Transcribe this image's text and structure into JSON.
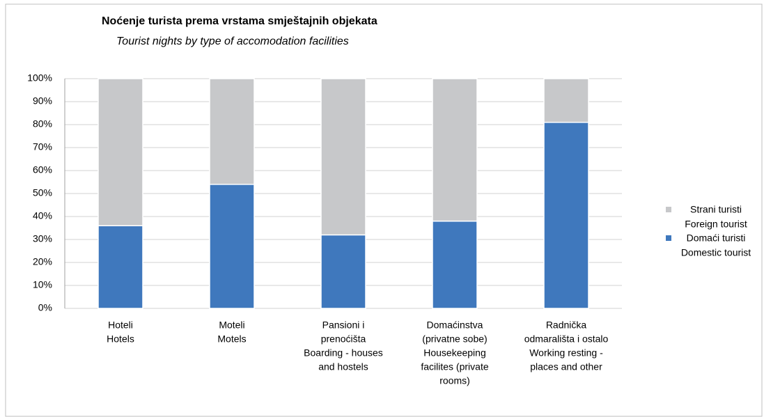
{
  "chart_data": {
    "type": "stacked_bar",
    "title": "Noćenje turista prema vrstama smještajnih objekata",
    "subtitle": "Tourist nights by type of accomodation facilities",
    "categories": [
      [
        "Hoteli",
        "Hotels"
      ],
      [
        "Moteli",
        "Motels"
      ],
      [
        "Pansioni  i",
        "prenoćišta",
        "Boarding - houses",
        "and hostels"
      ],
      [
        "Domaćinstva",
        "(privatne sobe)",
        "Housekeeping",
        "facilites (private",
        "rooms)"
      ],
      [
        "Radnička",
        "odmarališta i ostalo",
        "Working resting -",
        "places and other"
      ]
    ],
    "series": [
      {
        "name": [
          "Domaći turisti",
          "Domestic tourist"
        ],
        "color": "#3f78bd",
        "values": [
          36,
          54,
          32,
          38,
          81
        ]
      },
      {
        "name": [
          "Strani turisti",
          "Foreign tourist"
        ],
        "color": "#c7c8ca",
        "values": [
          64,
          46,
          68,
          62,
          19
        ]
      }
    ],
    "ylim": [
      0,
      100
    ],
    "yticks": [
      {
        "value": 0,
        "label": "0%"
      },
      {
        "value": 10,
        "label": "10%"
      },
      {
        "value": 20,
        "label": "20%"
      },
      {
        "value": 30,
        "label": "30%"
      },
      {
        "value": 40,
        "label": "40%"
      },
      {
        "value": 50,
        "label": "50%"
      },
      {
        "value": 60,
        "label": "60%"
      },
      {
        "value": 70,
        "label": "70%"
      },
      {
        "value": 80,
        "label": "80%"
      },
      {
        "value": 90,
        "label": "90%"
      },
      {
        "value": 100,
        "label": "100%"
      }
    ],
    "grid": true,
    "legend": "right"
  }
}
